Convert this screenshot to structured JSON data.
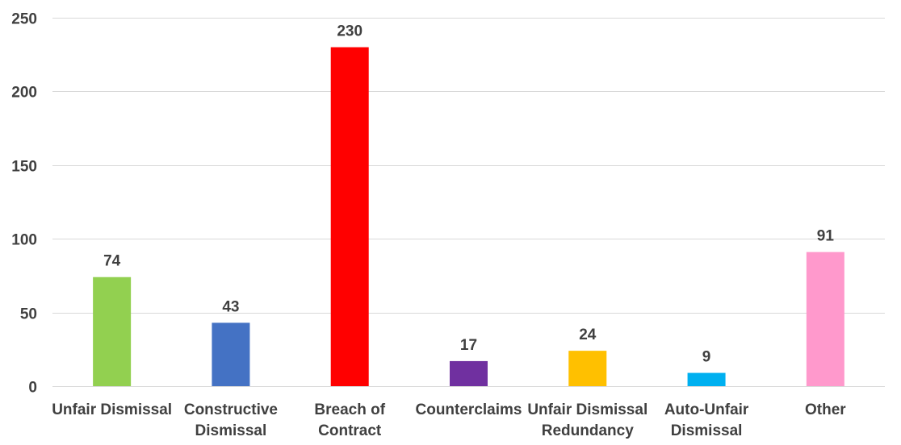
{
  "chart_data": {
    "type": "bar",
    "categories": [
      [
        "Unfair Dismissal"
      ],
      [
        "Constructive",
        "Dismissal"
      ],
      [
        "Breach of",
        "Contract"
      ],
      [
        "Counterclaims"
      ],
      [
        "Unfair Dismissal",
        "Redundancy"
      ],
      [
        "Auto-Unfair",
        "Dismissal"
      ],
      [
        "Other"
      ]
    ],
    "values": [
      74,
      43,
      230,
      17,
      24,
      9,
      91
    ],
    "colors": [
      "#92d050",
      "#4472c4",
      "#ff0000",
      "#7030a0",
      "#ffc000",
      "#00b0f0",
      "#ff99cc"
    ],
    "ylim": [
      0,
      250
    ],
    "yticks": [
      0,
      50,
      100,
      150,
      200,
      250
    ],
    "grid": true,
    "legend": "none"
  }
}
